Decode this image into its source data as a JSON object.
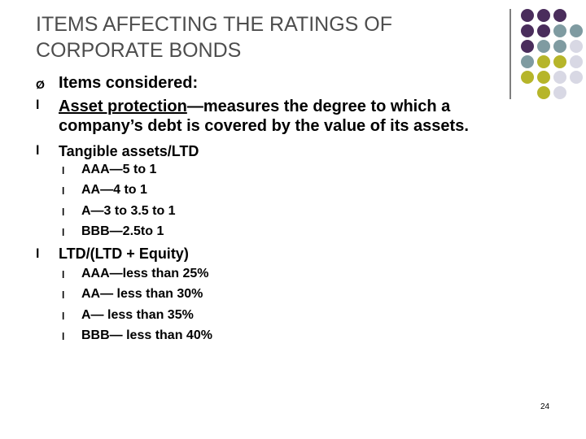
{
  "title": {
    "line1": "ITEMS AFFECTING THE RATINGS OF",
    "line2": "CORPORATE BONDS"
  },
  "colors": {
    "purple": "#4a2d5c",
    "gray": "#7f9ba1",
    "olive": "#b6b52a",
    "lilac": "#d8d8e4",
    "title": "#4d4d4d"
  },
  "bullets": {
    "items_considered": {
      "marker": "Ø",
      "label": "Items considered:"
    },
    "asset_protection": {
      "marker": "l",
      "term": "Asset protection",
      "rest_line1": "—measures the degree to which a",
      "line2": "company’s debt is covered by the value of its assets."
    },
    "tangible": {
      "marker": "l",
      "label": "Tangible assets/LTD",
      "subitems": [
        "AAA—5 to 1",
        "AA—4 to 1",
        "A—3 to 3.5 to 1",
        "BBB—2.5to 1"
      ]
    },
    "ltd_equity": {
      "marker": "l",
      "label": "LTD/(LTD + Equity)",
      "subitems": [
        "AAA—less than 25%",
        "AA— less than 30%",
        "A— less than 35%",
        "BBB— less than 40%"
      ]
    }
  },
  "page_number": "24"
}
